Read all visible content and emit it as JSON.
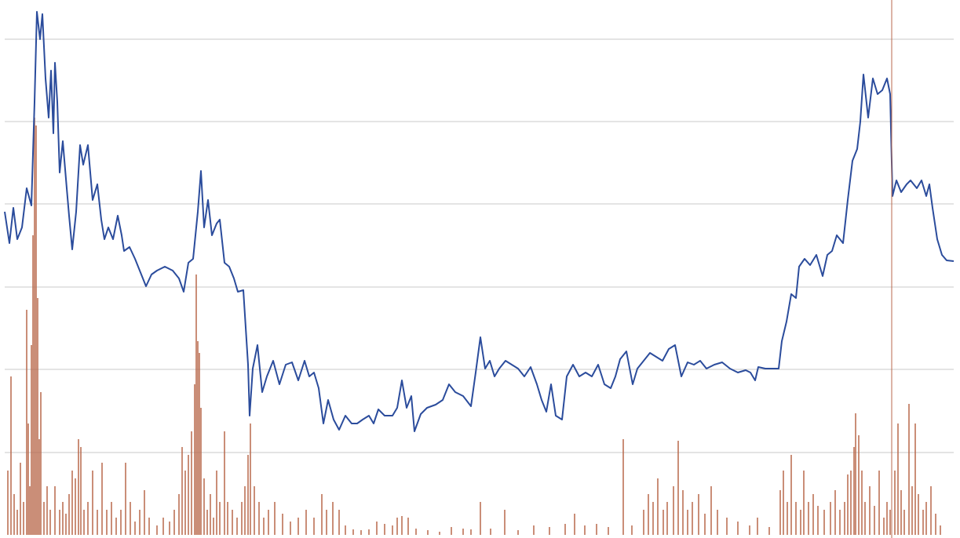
{
  "chart_data": [
    {
      "type": "line",
      "color": "#2b4c9c",
      "grid": true,
      "xlim": [
        0,
        1209
      ],
      "ylim": [
        0,
        682
      ],
      "yticks": [
        105,
        211,
        316,
        422,
        527,
        632
      ],
      "x": [
        0,
        6,
        11,
        16,
        22,
        28,
        34,
        38,
        41,
        45,
        48,
        52,
        56,
        59,
        62,
        64,
        67,
        70,
        74,
        79,
        82,
        86,
        91,
        96,
        100,
        106,
        112,
        118,
        123,
        127,
        132,
        138,
        144,
        149,
        152,
        159,
        166,
        172,
        180,
        187,
        194,
        204,
        214,
        222,
        228,
        234,
        240,
        246,
        250,
        254,
        259,
        264,
        270,
        274,
        280,
        286,
        292,
        297,
        304,
        310,
        312,
        316,
        322,
        328,
        334,
        342,
        350,
        358,
        366,
        374,
        382,
        388,
        394,
        400,
        406,
        412,
        419,
        426,
        434,
        442,
        449,
        456,
        464,
        470,
        476,
        484,
        494,
        500,
        506,
        512,
        518,
        522,
        530,
        538,
        549,
        558,
        566,
        574,
        584,
        594,
        600,
        606,
        612,
        618,
        624,
        630,
        638,
        646,
        654,
        662,
        670,
        678,
        684,
        690,
        696,
        702,
        710,
        716,
        724,
        732,
        740,
        748,
        756,
        764,
        772,
        778,
        784,
        792,
        800,
        806,
        814,
        822,
        830,
        838,
        846,
        854,
        862,
        870,
        878,
        886,
        894,
        904,
        914,
        924,
        934,
        944,
        950,
        956,
        960,
        969,
        986,
        990,
        996,
        1002,
        1008,
        1012,
        1019,
        1026,
        1034,
        1042,
        1048,
        1054,
        1060,
        1068,
        1074,
        1080,
        1086,
        1090,
        1094,
        1100,
        1106,
        1112,
        1118,
        1124,
        1128,
        1131,
        1136,
        1142,
        1149,
        1154,
        1162,
        1168,
        1174,
        1178,
        1182,
        1188,
        1194,
        1200,
        1209
      ],
      "values": [
        412,
        372,
        417,
        377,
        392,
        442,
        420,
        552,
        667,
        632,
        664,
        582,
        532,
        592,
        512,
        602,
        552,
        462,
        502,
        442,
        407,
        364,
        412,
        497,
        472,
        497,
        427,
        447,
        402,
        377,
        392,
        377,
        407,
        382,
        362,
        367,
        352,
        337,
        317,
        332,
        337,
        342,
        337,
        327,
        310,
        347,
        352,
        412,
        464,
        392,
        427,
        382,
        397,
        402,
        347,
        342,
        327,
        310,
        312,
        217,
        152,
        212,
        242,
        182,
        202,
        222,
        192,
        217,
        220,
        197,
        222,
        202,
        207,
        187,
        142,
        172,
        147,
        134,
        152,
        142,
        142,
        147,
        152,
        142,
        160,
        152,
        152,
        162,
        197,
        162,
        177,
        132,
        154,
        162,
        166,
        172,
        192,
        182,
        177,
        164,
        207,
        252,
        212,
        222,
        202,
        212,
        222,
        217,
        212,
        202,
        214,
        192,
        172,
        157,
        192,
        152,
        147,
        202,
        217,
        202,
        207,
        202,
        217,
        192,
        187,
        202,
        224,
        234,
        192,
        212,
        222,
        232,
        227,
        222,
        237,
        242,
        202,
        220,
        217,
        222,
        212,
        217,
        220,
        212,
        207,
        210,
        207,
        197,
        214,
        212,
        212,
        247,
        272,
        307,
        302,
        342,
        352,
        344,
        357,
        330,
        357,
        362,
        382,
        372,
        427,
        477,
        492,
        527,
        587,
        532,
        582,
        562,
        567,
        582,
        562,
        432,
        452,
        437,
        447,
        452,
        442,
        452,
        432,
        447,
        417,
        377,
        357,
        350,
        349
      ]
    },
    {
      "type": "bar",
      "color": "#b8684c",
      "xlim": [
        0,
        1209
      ],
      "ylim": [
        0,
        682
      ],
      "x": [
        4,
        8,
        12,
        16,
        20,
        24,
        28,
        30,
        32,
        34,
        36,
        38,
        40,
        42,
        44,
        46,
        50,
        54,
        58,
        64,
        70,
        74,
        78,
        82,
        86,
        90,
        94,
        97,
        101,
        106,
        112,
        118,
        124,
        130,
        136,
        142,
        148,
        154,
        160,
        166,
        172,
        178,
        184,
        194,
        202,
        210,
        216,
        222,
        226,
        230,
        234,
        238,
        242,
        244,
        246,
        248,
        250,
        254,
        258,
        262,
        266,
        270,
        274,
        280,
        284,
        290,
        296,
        302,
        306,
        310,
        313,
        318,
        324,
        330,
        336,
        344,
        354,
        364,
        374,
        384,
        394,
        404,
        410,
        418,
        426,
        434,
        444,
        454,
        464,
        474,
        484,
        494,
        500,
        506,
        514,
        524,
        539,
        554,
        569,
        584,
        594,
        606,
        619,
        637,
        654,
        674,
        694,
        714,
        726,
        739,
        754,
        769,
        788,
        799,
        814,
        820,
        826,
        832,
        839,
        844,
        852,
        858,
        864,
        870,
        876,
        884,
        892,
        900,
        908,
        920,
        934,
        949,
        959,
        974,
        988,
        992,
        997,
        1002,
        1008,
        1014,
        1018,
        1024,
        1030,
        1036,
        1044,
        1052,
        1058,
        1064,
        1070,
        1074,
        1078,
        1082,
        1084,
        1088,
        1092,
        1096,
        1102,
        1108,
        1114,
        1120,
        1124,
        1128,
        1134,
        1138,
        1142,
        1146,
        1152,
        1156,
        1160,
        1164,
        1170,
        1174,
        1180,
        1186,
        1192
      ],
      "values": [
        82,
        202,
        52,
        32,
        92,
        42,
        287,
        142,
        62,
        242,
        382,
        532,
        522,
        302,
        122,
        182,
        42,
        62,
        32,
        62,
        32,
        42,
        27,
        52,
        82,
        72,
        122,
        112,
        32,
        42,
        82,
        32,
        92,
        32,
        42,
        22,
        32,
        92,
        42,
        17,
        32,
        57,
        22,
        12,
        22,
        17,
        32,
        52,
        112,
        82,
        102,
        132,
        192,
        332,
        247,
        232,
        162,
        72,
        32,
        52,
        22,
        82,
        42,
        132,
        42,
        32,
        22,
        42,
        62,
        102,
        142,
        62,
        42,
        22,
        32,
        42,
        27,
        17,
        22,
        32,
        22,
        52,
        32,
        42,
        32,
        12,
        7,
        6,
        7,
        17,
        14,
        12,
        22,
        24,
        22,
        8,
        6,
        4,
        10,
        8,
        7,
        42,
        8,
        32,
        6,
        12,
        10,
        14,
        27,
        12,
        14,
        10,
        122,
        12,
        32,
        52,
        42,
        72,
        32,
        42,
        62,
        120,
        57,
        32,
        42,
        52,
        27,
        62,
        32,
        22,
        17,
        12,
        22,
        10,
        57,
        82,
        42,
        102,
        42,
        32,
        82,
        42,
        52,
        37,
        32,
        42,
        57,
        32,
        42,
        77,
        82,
        112,
        155,
        127,
        82,
        42,
        62,
        37,
        82,
        22,
        42,
        32,
        82,
        142,
        57,
        32,
        167,
        62,
        142,
        52,
        32,
        42,
        62,
        27,
        12
      ]
    }
  ]
}
